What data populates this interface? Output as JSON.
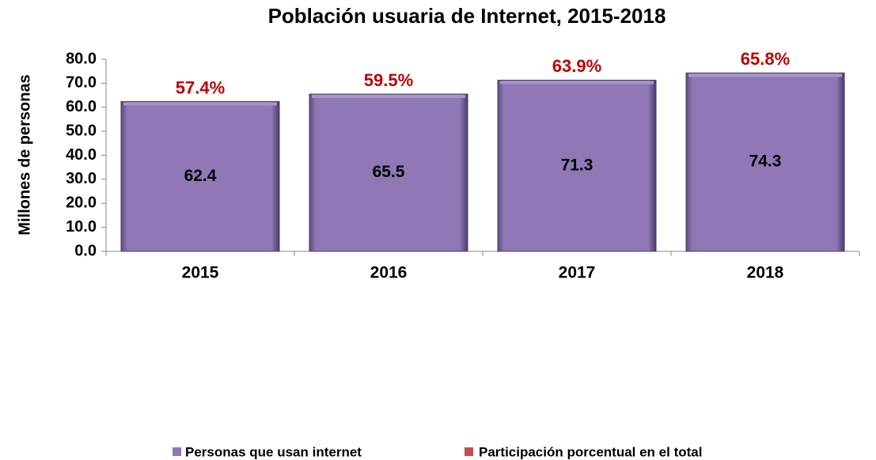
{
  "chart_data": {
    "type": "bar",
    "title": "Población usuaria de Internet, 2015-2018",
    "y_label": "Millones de personas",
    "categories": [
      "2015",
      "2016",
      "2017",
      "2018"
    ],
    "series": [
      {
        "name": "Personas que usan internet",
        "color": "#8f78b5",
        "values": [
          62.4,
          65.5,
          71.3,
          74.3
        ]
      },
      {
        "name": "Participación porcentual en el total",
        "color": "#c0504d",
        "values": [
          57.4,
          59.5,
          63.9,
          65.8
        ],
        "value_labels": [
          "57.4%",
          "59.5%",
          "63.9%",
          "65.8%"
        ],
        "label_color": "#c00000"
      }
    ],
    "ylim": [
      0,
      80
    ],
    "yticks": [
      {
        "value": 0,
        "label": "0.0"
      },
      {
        "value": 10,
        "label": "10.0"
      },
      {
        "value": 20,
        "label": "20.0"
      },
      {
        "value": 30,
        "label": "30.0"
      },
      {
        "value": 40,
        "label": "40.0"
      },
      {
        "value": 50,
        "label": "50.0"
      },
      {
        "value": 60,
        "label": "60.0"
      },
      {
        "value": 70,
        "label": "70.0"
      },
      {
        "value": 80,
        "label": "80.0"
      }
    ]
  }
}
